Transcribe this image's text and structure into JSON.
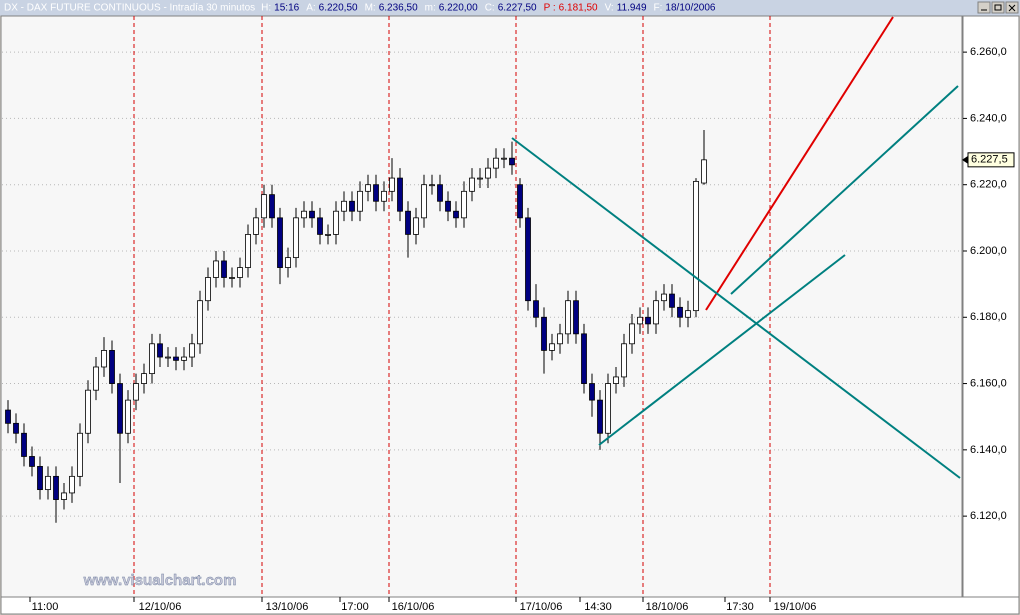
{
  "chart_data": {
    "type": "candlestick",
    "title": "DX - DAX FUTURE CONTINUOUS - Intradía 30 minutos",
    "info": [
      {
        "key": "H:",
        "val": "15:16"
      },
      {
        "key": "A:",
        "val": "6.220,50"
      },
      {
        "key": "M:",
        "val": "6.236,50"
      },
      {
        "key": "m:",
        "val": "6.220,00"
      },
      {
        "key": "C:",
        "val": "6.227,50"
      },
      {
        "key": "P :",
        "val": "6.181,50"
      },
      {
        "key": "V:",
        "val": "11.949"
      },
      {
        "key": "F:",
        "val": "18/10/2006"
      }
    ],
    "watermark": "www.visualchart.com",
    "x_labels": [
      "11:00",
      "12/10/06",
      "13/10/06",
      "17:00",
      "16/10/06",
      "17/10/06",
      "14:30",
      "18/10/06",
      "17:30",
      "19/10/06"
    ],
    "up_color": "#ffffff",
    "down_color": "#000080",
    "open": [
      6152,
      6148,
      6145,
      6138,
      6135,
      6128,
      6132,
      6125,
      6127,
      6132,
      6145,
      6158,
      6165,
      6170,
      6160,
      6145,
      6155,
      6160,
      6163,
      6172,
      6168,
      6168,
      6167,
      6168,
      6172,
      6185,
      6192,
      6197,
      6192,
      6192,
      6195,
      6205,
      6210,
      6217,
      6210,
      6195,
      6198,
      6210,
      6212,
      6210,
      6205,
      6205,
      6212,
      6215,
      6212,
      6218,
      6220,
      6215,
      6218,
      6222,
      6212,
      6205,
      6210,
      6220,
      6220,
      6215,
      6212,
      6210,
      6218,
      6222,
      6222,
      6225,
      6228,
      6228,
      6220,
      6210,
      6185,
      6180,
      6170,
      6172,
      6175,
      6185,
      6175,
      6160,
      6155,
      6145,
      6160,
      6162,
      6172,
      6178,
      6180,
      6178,
      6185,
      6187,
      6183,
      6180,
      6182,
      6220.5
    ],
    "high": [
      6155,
      6151,
      6148,
      6141,
      6138,
      6135,
      6135,
      6130,
      6135,
      6148,
      6161,
      6168,
      6174,
      6173,
      6163,
      6158,
      6163,
      6166,
      6175,
      6175,
      6171,
      6171,
      6171,
      6175,
      6188,
      6195,
      6200,
      6200,
      6195,
      6198,
      6208,
      6213,
      6220,
      6220,
      6213,
      6201,
      6213,
      6215,
      6215,
      6213,
      6208,
      6215,
      6218,
      6218,
      6221,
      6223,
      6223,
      6221,
      6228,
      6225,
      6215,
      6213,
      6223,
      6223,
      6223,
      6218,
      6215,
      6221,
      6225,
      6225,
      6228,
      6231,
      6231,
      6233,
      6222,
      6213,
      6190,
      6183,
      6175,
      6178,
      6188,
      6188,
      6178,
      6163,
      6158,
      6163,
      6165,
      6175,
      6181,
      6183,
      6183,
      6188,
      6190,
      6190,
      6186,
      6185,
      6222,
      6236.5
    ],
    "low": [
      6145,
      6142,
      6135,
      6132,
      6125,
      6125,
      6118,
      6122,
      6124,
      6129,
      6142,
      6155,
      6162,
      6157,
      6130,
      6142,
      6152,
      6157,
      6160,
      6165,
      6165,
      6164,
      6164,
      6165,
      6169,
      6182,
      6189,
      6189,
      6189,
      6189,
      6192,
      6202,
      6207,
      6207,
      6190,
      6192,
      6195,
      6207,
      6207,
      6202,
      6202,
      6202,
      6209,
      6209,
      6209,
      6215,
      6212,
      6212,
      6215,
      6209,
      6198,
      6202,
      6207,
      6217,
      6212,
      6209,
      6207,
      6207,
      6215,
      6219,
      6219,
      6222,
      6225,
      6223,
      6207,
      6182,
      6177,
      6163,
      6167,
      6169,
      6172,
      6172,
      6157,
      6150,
      6140,
      6142,
      6157,
      6159,
      6169,
      6175,
      6175,
      6175,
      6182,
      6180,
      6177,
      6177,
      6180,
      6220
    ],
    "close": [
      6148,
      6145,
      6138,
      6135,
      6128,
      6132,
      6125,
      6127,
      6132,
      6145,
      6158,
      6165,
      6170,
      6160,
      6145,
      6155,
      6160,
      6163,
      6172,
      6168,
      6168,
      6167,
      6168,
      6172,
      6185,
      6192,
      6197,
      6192,
      6192,
      6195,
      6205,
      6210,
      6217,
      6210,
      6195,
      6198,
      6210,
      6212,
      6210,
      6205,
      6205,
      6212,
      6215,
      6212,
      6218,
      6220,
      6215,
      6218,
      6222,
      6212,
      6205,
      6210,
      6220,
      6220,
      6215,
      6212,
      6210,
      6218,
      6222,
      6222,
      6225,
      6228,
      6228,
      6226,
      6210,
      6185,
      6180,
      6170,
      6172,
      6175,
      6185,
      6175,
      6160,
      6155,
      6145,
      6160,
      6162,
      6172,
      6178,
      6180,
      6178,
      6185,
      6187,
      6183,
      6180,
      6182,
      6221,
      6227.5
    ],
    "last_price": {
      "value": 6227.5,
      "label": "6.227,5"
    },
    "ylim": [
      6095.6,
      6270.9
    ],
    "yticks": [
      {
        "value": 6120,
        "label": "6.120,0"
      },
      {
        "value": 6140,
        "label": "6.140,0"
      },
      {
        "value": 6160,
        "label": "6.160,0"
      },
      {
        "value": 6180,
        "label": "6.180,0"
      },
      {
        "value": 6200,
        "label": "6.200,0"
      },
      {
        "value": 6220,
        "label": "6.220,0"
      },
      {
        "value": 6240,
        "label": "6.240,0"
      },
      {
        "value": 6260,
        "label": "6.260,0"
      }
    ],
    "grid": true
  }
}
